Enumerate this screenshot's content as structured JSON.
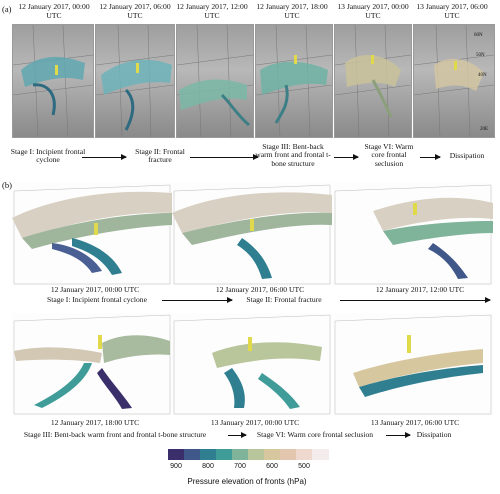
{
  "panel_a": {
    "letter": "(a)",
    "thumb_titles": [
      "12 January 2017, 00:00 UTC",
      "12 January 2017, 06:00 UTC",
      "12 January 2017, 12:00 UTC",
      "12 January 2017, 18:00 UTC",
      "13 January 2017, 00:00 UTC",
      "13 January 2017, 06:00 UTC"
    ],
    "map_labels": [
      "60N",
      "50N",
      "40N",
      "20E"
    ],
    "stages": [
      "Stage I: Incipient frontal cyclone",
      "Stage II: Frontal fracture",
      "Stage III: Bent-back warm front and frontal t-bone structure",
      "Stage VI: Warm core frontal seclusion",
      "Dissipation"
    ]
  },
  "panel_b": {
    "letter": "(b)",
    "views": [
      {
        "time": "12 January 2017, 00:00 UTC"
      },
      {
        "time": "12 January 2017, 06:00 UTC"
      },
      {
        "time": "12 January 2017, 12:00 UTC"
      },
      {
        "time": "12 January 2017, 18:00 UTC"
      },
      {
        "time": "13 January 2017, 00:00 UTC"
      },
      {
        "time": "13 January 2017, 06:00 UTC"
      }
    ],
    "row1_stages": [
      "Stage I: Incipient frontal cyclone",
      "Stage II: Frontal fracture"
    ],
    "row2_stages": [
      "Stage III: Bent-back warm front and frontal t-bone structure",
      "Stage VI: Warm core frontal seclusion",
      "Dissipation"
    ]
  },
  "colorbar": {
    "title": "Pressure elevation of fronts (hPa)",
    "ticks": [
      "900",
      "800",
      "700",
      "600",
      "500"
    ],
    "colors": [
      "#3b2f6b",
      "#40578a",
      "#2f7f91",
      "#3f9c98",
      "#7fb39a",
      "#b9c59a",
      "#d7c79f",
      "#e2c7ae",
      "#efd9cf",
      "#f4ecea"
    ]
  }
}
